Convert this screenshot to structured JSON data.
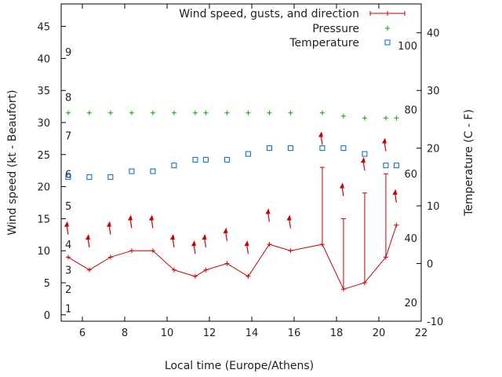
{
  "chart_data": {
    "type": "line",
    "xlabel": "Local time (Europe/Athens)",
    "ylabel_left": "Wind speed (kt - Beaufort)",
    "ylabel_right": "Temperature (C - F)",
    "xlim": [
      5,
      22
    ],
    "ylim_left": [
      -1,
      48.5
    ],
    "ylim_right": [
      -10,
      45
    ],
    "x_ticks": [
      6,
      8,
      10,
      12,
      14,
      16,
      18,
      20,
      22
    ],
    "y_left_ticks": [
      0,
      5,
      10,
      15,
      20,
      25,
      30,
      35,
      40,
      45
    ],
    "y_right_ticks": [
      -10,
      0,
      10,
      20,
      30,
      40
    ],
    "beaufort_labels": [
      {
        "label": "1",
        "kt": 1
      },
      {
        "label": "2",
        "kt": 4
      },
      {
        "label": "3",
        "kt": 7
      },
      {
        "label": "4",
        "kt": 11
      },
      {
        "label": "5",
        "kt": 17
      },
      {
        "label": "6",
        "kt": 22
      },
      {
        "label": "7",
        "kt": 28
      },
      {
        "label": "8",
        "kt": 34
      },
      {
        "label": "9",
        "kt": 41
      }
    ],
    "fahrenheit_labels": [
      {
        "label": "20",
        "temp_c": -6.7
      },
      {
        "label": "40",
        "temp_c": 4.4
      },
      {
        "label": "60",
        "temp_c": 15.6
      },
      {
        "label": "80",
        "temp_c": 26.7
      },
      {
        "label": "100",
        "temp_c": 37.8
      }
    ],
    "legend_position": "top-right",
    "grid": false,
    "series": [
      {
        "name": "Wind speed, gusts, and direction",
        "color": "#cc0000",
        "marker": "plus-line",
        "points": [
          {
            "x": 5.33,
            "y": 9,
            "gust": null,
            "dir_y": 13.5
          },
          {
            "x": 6.33,
            "y": 7,
            "gust": null,
            "dir_y": 11.5
          },
          {
            "x": 7.33,
            "y": 9,
            "gust": null,
            "dir_y": 13.5
          },
          {
            "x": 8.33,
            "y": 10,
            "gust": null,
            "dir_y": 14.5
          },
          {
            "x": 9.33,
            "y": 10,
            "gust": null,
            "dir_y": 14.5
          },
          {
            "x": 10.33,
            "y": 7,
            "gust": null,
            "dir_y": 11.5
          },
          {
            "x": 11.33,
            "y": 6,
            "gust": null,
            "dir_y": 10.5
          },
          {
            "x": 11.83,
            "y": 7,
            "gust": null,
            "dir_y": 11.5
          },
          {
            "x": 12.83,
            "y": 8,
            "gust": null,
            "dir_y": 12.5
          },
          {
            "x": 13.83,
            "y": 6,
            "gust": null,
            "dir_y": 10.5
          },
          {
            "x": 14.83,
            "y": 11,
            "gust": null,
            "dir_y": 15.5
          },
          {
            "x": 15.83,
            "y": 10,
            "gust": null,
            "dir_y": 14.5
          },
          {
            "x": 17.33,
            "y": 11,
            "gust": 23,
            "dir_y": 27.5
          },
          {
            "x": 18.33,
            "y": 4,
            "gust": 15,
            "dir_y": 19.5
          },
          {
            "x": 19.33,
            "y": 5,
            "gust": 19,
            "dir_y": 23.5
          },
          {
            "x": 20.33,
            "y": 9,
            "gust": 22,
            "dir_y": 26.5
          },
          {
            "x": 20.83,
            "y": 14,
            "gust": null,
            "dir_y": 18.5
          }
        ]
      },
      {
        "name": "Pressure",
        "color": "#00aa00",
        "marker": "plus",
        "points": [
          {
            "x": 5.33,
            "y": 31.5
          },
          {
            "x": 6.33,
            "y": 31.5
          },
          {
            "x": 7.33,
            "y": 31.5
          },
          {
            "x": 8.33,
            "y": 31.5
          },
          {
            "x": 9.33,
            "y": 31.5
          },
          {
            "x": 10.33,
            "y": 31.5
          },
          {
            "x": 11.33,
            "y": 31.5
          },
          {
            "x": 11.83,
            "y": 31.5
          },
          {
            "x": 12.83,
            "y": 31.5
          },
          {
            "x": 13.83,
            "y": 31.5
          },
          {
            "x": 14.83,
            "y": 31.5
          },
          {
            "x": 15.83,
            "y": 31.5
          },
          {
            "x": 17.33,
            "y": 31.5
          },
          {
            "x": 18.33,
            "y": 31.0
          },
          {
            "x": 19.33,
            "y": 30.7
          },
          {
            "x": 20.33,
            "y": 30.7
          },
          {
            "x": 20.83,
            "y": 30.7
          }
        ]
      },
      {
        "name": "Temperature",
        "color": "#0066cc",
        "marker": "square",
        "axis": "right",
        "points": [
          {
            "x": 5.33,
            "y": 15.0
          },
          {
            "x": 6.33,
            "y": 15.0
          },
          {
            "x": 7.33,
            "y": 15.0
          },
          {
            "x": 8.33,
            "y": 16.0
          },
          {
            "x": 9.33,
            "y": 16.0
          },
          {
            "x": 10.33,
            "y": 17.0
          },
          {
            "x": 11.33,
            "y": 18.0
          },
          {
            "x": 11.83,
            "y": 18.0
          },
          {
            "x": 12.83,
            "y": 18.0
          },
          {
            "x": 13.83,
            "y": 19.0
          },
          {
            "x": 14.83,
            "y": 20.0
          },
          {
            "x": 15.83,
            "y": 20.0
          },
          {
            "x": 17.33,
            "y": 20.0
          },
          {
            "x": 18.33,
            "y": 20.0
          },
          {
            "x": 19.33,
            "y": 19.0
          },
          {
            "x": 20.33,
            "y": 17.0
          },
          {
            "x": 20.83,
            "y": 17.0
          }
        ]
      }
    ]
  }
}
